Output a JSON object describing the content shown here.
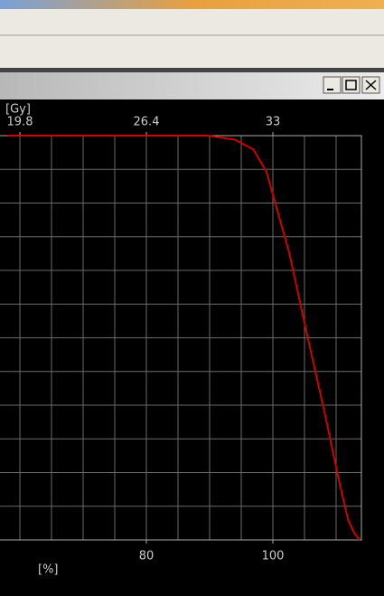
{
  "chart_data": {
    "type": "line",
    "x_unit": "[%]",
    "x2_unit": "[Gy]",
    "xlim": [
      58,
      114
    ],
    "xticks": [
      80,
      100
    ],
    "x2lim": [
      19.14,
      37.62
    ],
    "x2ticks": [
      19.8,
      26.4,
      33
    ],
    "xgrid": [
      60,
      65,
      70,
      75,
      80,
      85,
      90,
      95,
      100,
      105,
      110
    ],
    "ylim": [
      0,
      100
    ],
    "ygrid": [
      8.33,
      16.67,
      25,
      33.33,
      41.67,
      50,
      58.33,
      66.67,
      75,
      83.33,
      91.67
    ],
    "grid": true,
    "series": [
      {
        "color": "#d00000",
        "x": [
          58,
          89.7,
          94,
          96.9,
          99,
          100.4,
          102.6,
          105.4,
          108.3,
          110.4,
          111.9,
          112.9,
          113.7
        ],
        "values": [
          100,
          100,
          99,
          96.6,
          91,
          83.2,
          70.9,
          50.8,
          30.6,
          15,
          4.9,
          1.6,
          0
        ]
      }
    ]
  }
}
